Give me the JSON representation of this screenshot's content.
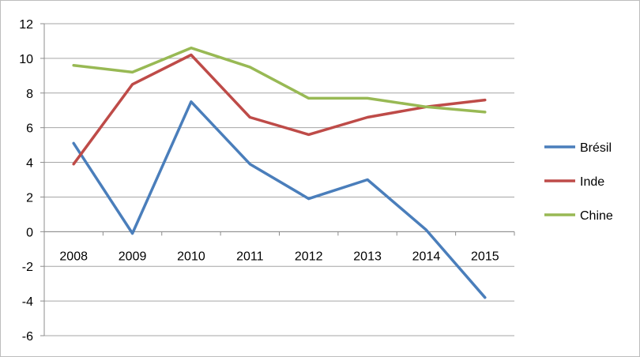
{
  "chart_data": {
    "type": "line",
    "categories": [
      "2008",
      "2009",
      "2010",
      "2011",
      "2012",
      "2013",
      "2014",
      "2015"
    ],
    "series": [
      {
        "name": "Brésil",
        "color": "#4a7ebb",
        "values": [
          5.1,
          -0.1,
          7.5,
          3.9,
          1.9,
          3.0,
          0.1,
          -3.8
        ]
      },
      {
        "name": "Inde",
        "color": "#be4b48",
        "values": [
          3.9,
          8.5,
          10.2,
          6.6,
          5.6,
          6.6,
          7.2,
          7.6
        ]
      },
      {
        "name": "Chine",
        "color": "#98b954",
        "values": [
          9.6,
          9.2,
          10.6,
          9.5,
          7.7,
          7.7,
          7.2,
          6.9
        ]
      }
    ],
    "yticks": [
      "12",
      "10",
      "8",
      "6",
      "4",
      "2",
      "0",
      "-2",
      "-4",
      "-6"
    ],
    "ylim": [
      -6,
      12
    ],
    "grid": true,
    "legend": "right",
    "title": "",
    "xlabel": "",
    "ylabel": ""
  }
}
